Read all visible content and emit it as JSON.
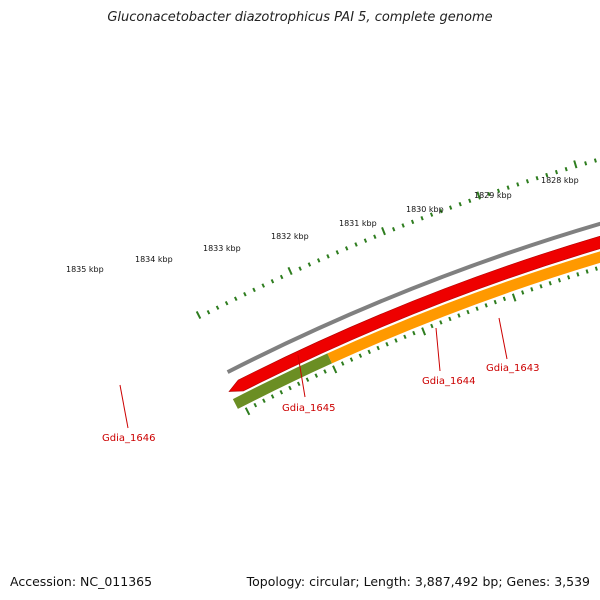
{
  "title": "Gluconacetobacter diazotrophicus PAI 5, complete genome",
  "footer": {
    "accession": "Accession: NC_011365",
    "stats": "Topology: circular; Length: 3,887,492 bp; Genes: 3,539"
  },
  "scale_labels": [
    "1835 kbp",
    "1834 kbp",
    "1833 kbp",
    "1832 kbp",
    "1831 kbp",
    "1830 kbp",
    "1829 kbp",
    "1828 kbp"
  ],
  "gene_labels": [
    "Gdia_1646",
    "Gdia_1645",
    "Gdia_1644",
    "Gdia_1643"
  ],
  "colors": {
    "backbone": "#808080",
    "red_gene": "#ee0000",
    "tick": "#2e7d1f",
    "label": "#cc0000",
    "olive": "#6b8e23",
    "orange": "#ff9900",
    "magenta": "#ee1e8c",
    "lime": "#99ee33",
    "gray_feature": "#707070",
    "cyan": "#00b4ee"
  }
}
